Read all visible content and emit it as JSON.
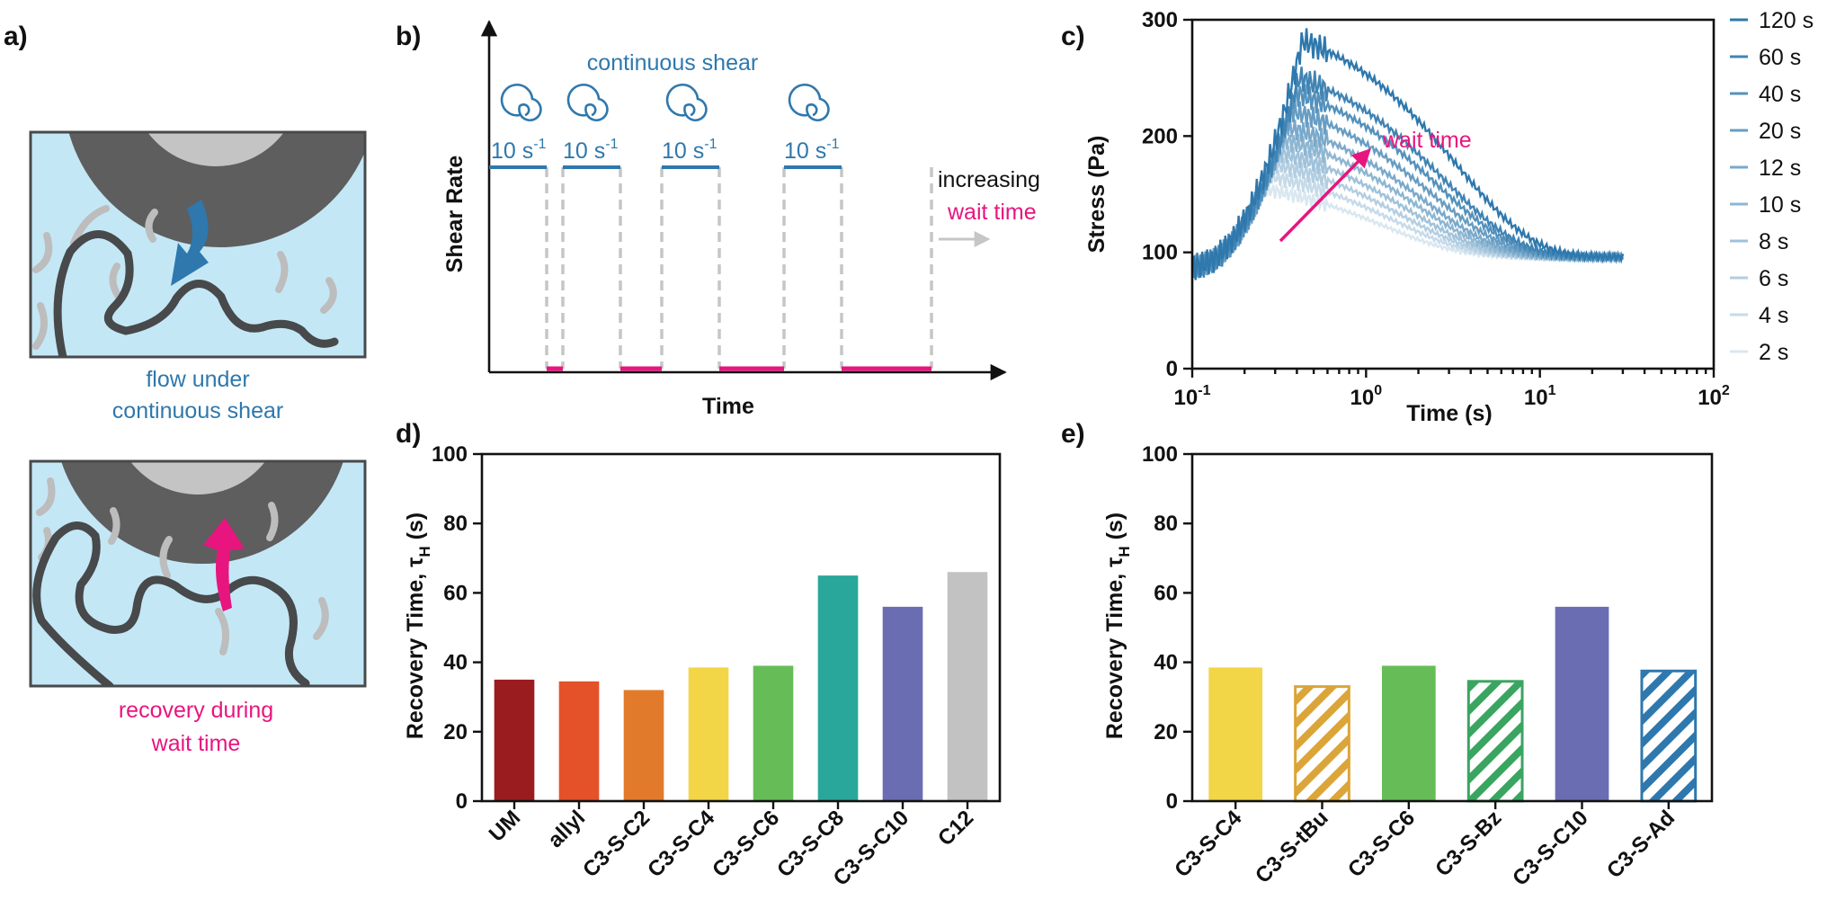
{
  "panel_labels": {
    "a": "a)",
    "b": "b)",
    "c": "c)",
    "d": "d)",
    "e": "e)"
  },
  "colors": {
    "blue": "#2e78ad",
    "magenta": "#e8157f",
    "gray_dash": "#c6c6c6",
    "fluid": "#c4e7f6",
    "cylinder": "#5e5e5e",
    "cylinder_light": "#c4c4c4",
    "chain": "#47494b",
    "side_chain": "#bdbdbd"
  },
  "panel_a": {
    "top_caption": [
      "flow under",
      "continuous shear"
    ],
    "bottom_caption": [
      "recovery during",
      "wait time"
    ]
  },
  "panel_b": {
    "title": "continuous shear",
    "ylabel": "Shear Rate",
    "xlabel": "Time",
    "rate_label": "10 s",
    "rate_sup": "-1",
    "increasing_label": "increasing",
    "wait_label": "wait time"
  },
  "chart_data": [
    {
      "panel": "c",
      "type": "line",
      "xlabel": "Time (s)",
      "ylabel": "Stress (Pa)",
      "xscale": "log",
      "xlim": [
        0.1,
        100
      ],
      "ylim": [
        0,
        300
      ],
      "xticks": [
        {
          "base": "10",
          "exp": "-1"
        },
        {
          "base": "10",
          "exp": "0"
        },
        {
          "base": "10",
          "exp": "1"
        },
        {
          "base": "10",
          "exp": "2"
        }
      ],
      "yticks": [
        0,
        100,
        200,
        300
      ],
      "annotation": "wait time",
      "legend_position": "right",
      "series": [
        {
          "name": "120 s",
          "peak_time": 0.43,
          "peak_stress": 282
        },
        {
          "name": "60 s",
          "peak_time": 0.41,
          "peak_stress": 250
        },
        {
          "name": "40 s",
          "peak_time": 0.39,
          "peak_stress": 237
        },
        {
          "name": "20 s",
          "peak_time": 0.37,
          "peak_stress": 222
        },
        {
          "name": "12 s",
          "peak_time": 0.35,
          "peak_stress": 208
        },
        {
          "name": "10 s",
          "peak_time": 0.33,
          "peak_stress": 197
        },
        {
          "name": "8 s",
          "peak_time": 0.31,
          "peak_stress": 186
        },
        {
          "name": "6 s",
          "peak_time": 0.29,
          "peak_stress": 176
        },
        {
          "name": "4 s",
          "peak_time": 0.27,
          "peak_stress": 166
        },
        {
          "name": "2 s",
          "peak_time": 0.25,
          "peak_stress": 155
        }
      ],
      "end_time": 30,
      "end_stress": 96,
      "start_stress": 88
    },
    {
      "panel": "d",
      "type": "bar",
      "ylabel": "Recovery Time, τ",
      "ylabel_sub": "H",
      "ylabel_unit": " (s)",
      "ylim": [
        0,
        100
      ],
      "yticks": [
        0,
        20,
        40,
        60,
        80,
        100
      ],
      "categories": [
        "UM",
        "allyl",
        "C3-S-C2",
        "C3-S-C4",
        "C3-S-C6",
        "C3-S-C8",
        "C3-S-C10",
        "C12"
      ],
      "values": [
        35,
        34.5,
        32,
        38.5,
        39,
        65,
        56,
        66
      ],
      "colors": [
        "#9b1c1f",
        "#e4522a",
        "#e27a2b",
        "#f3d548",
        "#66bd57",
        "#2aa79b",
        "#6b6db3",
        "#c2c2c2"
      ],
      "hatched": [
        false,
        false,
        false,
        false,
        false,
        false,
        false,
        false
      ]
    },
    {
      "panel": "e",
      "type": "bar",
      "ylabel": "Recovery Time, τ",
      "ylabel_sub": "H",
      "ylabel_unit": " (s)",
      "ylim": [
        0,
        100
      ],
      "yticks": [
        0,
        20,
        40,
        60,
        80,
        100
      ],
      "categories": [
        "C3-S-C4",
        "C3-S-tBu",
        "C3-S-C6",
        "C3-S-Bz",
        "C3-S-C10",
        "C3-S-Ad"
      ],
      "values": [
        38.5,
        33,
        39,
        34.5,
        56,
        37.5
      ],
      "colors": [
        "#f3d548",
        "#dba539",
        "#66bd57",
        "#3aa561",
        "#6b6db3",
        "#2e78ad"
      ],
      "hatched": [
        false,
        true,
        false,
        true,
        false,
        true
      ]
    }
  ]
}
